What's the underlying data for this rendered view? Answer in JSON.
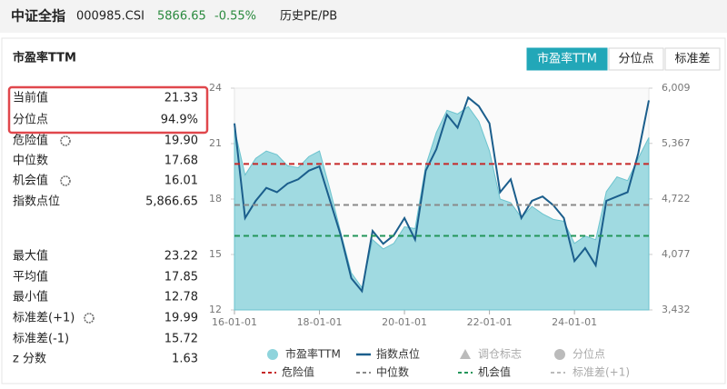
{
  "header": {
    "title": "中证全指",
    "code": "000985.CSI",
    "price": "5866.65",
    "change": "-0.55%",
    "link": "历史PE/PB"
  },
  "panel_title": "市盈率TTM",
  "tabs": [
    "市盈率TTM",
    "分位点",
    "标准差"
  ],
  "stats": [
    {
      "label": "当前值",
      "value": "21.33"
    },
    {
      "label": "分位点",
      "value": "94.9%"
    },
    {
      "label": "危险值",
      "value": "19.90"
    },
    {
      "label": "中位数",
      "value": "17.68"
    },
    {
      "label": "机会值",
      "value": "16.01"
    },
    {
      "label": "指数点位",
      "value": "5,866.65"
    },
    {
      "label": "最大值",
      "value": "23.22"
    },
    {
      "label": "平均值",
      "value": "17.85"
    },
    {
      "label": "最小值",
      "value": "12.78"
    },
    {
      "label": "标准差(+1)",
      "value": "19.99"
    },
    {
      "label": "标准差(-1)",
      "value": "15.72"
    },
    {
      "label": "z 分数",
      "value": "1.63"
    }
  ],
  "chart_data": {
    "type": "line",
    "categories": [
      "16-01-01",
      null,
      null,
      null,
      null,
      null,
      null,
      null,
      "18-01-01",
      null,
      null,
      null,
      null,
      null,
      null,
      null,
      "20-01-01",
      null,
      null,
      null,
      null,
      null,
      null,
      null,
      "22-01-01",
      null,
      null,
      null,
      null,
      null,
      null,
      null,
      "24-01-01",
      null,
      null,
      null,
      null,
      null,
      null,
      null
    ],
    "series": [
      {
        "name": "市盈率TTM",
        "color": "#8fd4dc",
        "values": [
          21.8,
          19.3,
          20.2,
          20.6,
          20.4,
          19.8,
          19.7,
          20.3,
          20.6,
          18.5,
          16.2,
          14.0,
          13.2,
          15.8,
          15.3,
          15.6,
          16.5,
          16.4,
          19.8,
          21.6,
          22.8,
          22.6,
          23.0,
          22.2,
          20.6,
          18.0,
          17.8,
          17.0,
          17.6,
          17.2,
          16.9,
          16.8,
          15.6,
          16.0,
          15.8,
          18.4,
          19.2,
          19.0,
          20.2,
          21.33
        ]
      },
      {
        "name": "指数点位",
        "color": "#1b5e8c",
        "axis": "y2",
        "values": [
          5600,
          4500,
          4700,
          4850,
          4800,
          4900,
          4950,
          5050,
          5100,
          4700,
          4300,
          3800,
          3650,
          4350,
          4200,
          4300,
          4500,
          4250,
          5050,
          5300,
          5700,
          5550,
          5900,
          5800,
          5600,
          4800,
          4950,
          4500,
          4700,
          4750,
          4650,
          4500,
          4000,
          4150,
          3950,
          4700,
          4750,
          4800,
          5250,
          5866.65
        ]
      }
    ],
    "reference_lines": [
      {
        "name": "危险值",
        "value": 19.9,
        "color": "#c62828"
      },
      {
        "name": "中位数",
        "value": 17.68,
        "color": "#8a8a8a"
      },
      {
        "name": "机会值",
        "value": 16.01,
        "color": "#23955a"
      }
    ],
    "inactive_legend": [
      "调仓标志",
      "分位点",
      "标准差(+1)"
    ],
    "ylim": [
      12,
      24
    ],
    "yticks": [
      12,
      15,
      18,
      21,
      24
    ],
    "y2lim": [
      3432,
      6009
    ],
    "y2ticks": [
      {
        "value": 3432,
        "label": "3,432"
      },
      {
        "value": 4077,
        "label": "4,077"
      },
      {
        "value": 4722,
        "label": "4,722"
      },
      {
        "value": 5367,
        "label": "5,367"
      },
      {
        "value": 6009,
        "label": "6,009"
      }
    ]
  }
}
